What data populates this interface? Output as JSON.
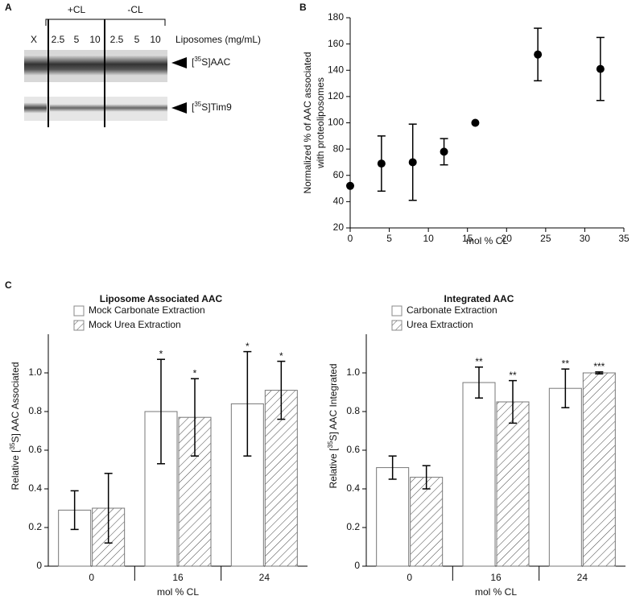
{
  "panel_labels": [
    "A",
    "B",
    "C"
  ],
  "blot": {
    "lanes": [
      "X",
      "2.5",
      "5",
      "10",
      "2.5",
      "5",
      "10"
    ],
    "groups": [
      "+CL",
      "-CL"
    ],
    "lane_title": "Liposomes (mg/mL)",
    "bands": [
      [
        "[",
        "35",
        "S]AAC"
      ],
      [
        "[",
        "35",
        "S]Tim9"
      ]
    ]
  },
  "chart_data": [
    {
      "type": "scatter",
      "x": [
        0,
        4,
        8,
        12,
        16,
        24,
        32
      ],
      "values": [
        52,
        69,
        70,
        78,
        100,
        152,
        141
      ],
      "errors": [
        null,
        21,
        29,
        10,
        null,
        20,
        24
      ],
      "color": "#000000",
      "xlim": [
        0,
        35
      ],
      "xticks": [
        0,
        5,
        10,
        15,
        20,
        25,
        30,
        35
      ],
      "ylim": [
        20,
        180
      ],
      "yticks": [
        20,
        40,
        60,
        80,
        100,
        120,
        140,
        160,
        180
      ],
      "xlabel": "mol % CL",
      "ylabel": [
        "Normalized % of AAC associated",
        "with proteoliposomes"
      ]
    },
    {
      "type": "bar",
      "title": "Liposome Associated AAC",
      "categories": [
        "0",
        "16",
        "24"
      ],
      "series": [
        {
          "name": "Mock Carbonate Extraction",
          "color": "#ffffff",
          "hatch": false,
          "values": [
            0.29,
            0.8,
            0.84
          ],
          "errors": [
            0.1,
            0.27,
            0.27
          ],
          "labels": [
            null,
            "*",
            "*"
          ]
        },
        {
          "name": "Mock Urea Extraction",
          "color": "#ffffff",
          "hatch": true,
          "values": [
            0.3,
            0.77,
            0.91
          ],
          "errors": [
            0.18,
            0.2,
            0.15
          ],
          "labels": [
            null,
            "*",
            "*"
          ]
        }
      ],
      "ylim": [
        0,
        1.2
      ],
      "yticks": [
        0,
        0.2,
        0.4,
        0.6,
        0.8,
        {
          "value": 1,
          "label": "1.0"
        }
      ],
      "xlabel": "mol % CL",
      "ylabel": [
        "Relative [",
        "35",
        "S] AAC Associated"
      ]
    },
    {
      "type": "bar",
      "title": "Integrated AAC",
      "categories": [
        "0",
        "16",
        "24"
      ],
      "series": [
        {
          "name": "Carbonate Extraction",
          "color": "#ffffff",
          "hatch": false,
          "values": [
            0.51,
            0.95,
            0.92
          ],
          "errors": [
            0.06,
            0.08,
            0.1
          ],
          "labels": [
            null,
            "**",
            "**"
          ]
        },
        {
          "name": "Urea Extraction",
          "color": "#ffffff",
          "hatch": true,
          "values": [
            0.46,
            0.85,
            1
          ],
          "errors": [
            0.06,
            0.11,
            0.005
          ],
          "labels": [
            null,
            "**",
            "***"
          ]
        }
      ],
      "ylim": [
        0,
        1.2
      ],
      "yticks": [
        0,
        0.2,
        0.4,
        0.6,
        0.8,
        {
          "value": 1,
          "label": "1.0"
        }
      ],
      "xlabel": "mol % CL",
      "ylabel": [
        "Relative [",
        "35",
        "S] AAC Integrated"
      ]
    }
  ]
}
